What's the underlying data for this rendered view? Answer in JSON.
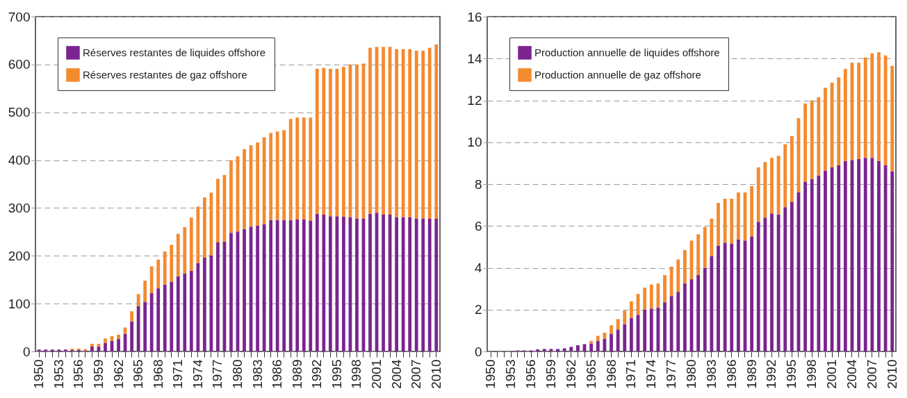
{
  "chart_data": [
    {
      "type": "bar",
      "stacked": true,
      "categories": [
        "1950",
        null,
        null,
        "1953",
        null,
        null,
        "1956",
        null,
        null,
        "1959",
        null,
        null,
        "1962",
        null,
        null,
        "1965",
        null,
        null,
        "1968",
        null,
        null,
        "1971",
        null,
        null,
        "1974",
        null,
        null,
        "1977",
        null,
        null,
        "1980",
        null,
        null,
        "1983",
        null,
        null,
        "1986",
        null,
        null,
        "1989",
        null,
        null,
        "1992",
        null,
        null,
        "1995",
        null,
        null,
        "1998",
        null,
        null,
        "2001",
        null,
        null,
        "2004",
        null,
        null,
        "2007",
        null,
        null,
        "2010"
      ],
      "series": [
        {
          "name": "Réserves restantes de liquides offshore",
          "color": "#7b2490",
          "values": [
            4,
            4,
            4,
            4,
            4,
            3,
            3,
            2,
            10,
            10,
            18,
            22,
            26,
            37,
            63,
            95,
            104,
            122,
            132,
            140,
            146,
            157,
            163,
            169,
            185,
            196,
            201,
            228,
            230,
            248,
            251,
            256,
            261,
            263,
            266,
            275,
            275,
            275,
            275,
            276,
            276,
            273,
            288,
            286,
            283,
            283,
            282,
            281,
            278,
            278,
            288,
            290,
            286,
            286,
            281,
            281,
            281,
            278,
            278,
            278,
            278
          ]
        },
        {
          "name": "Réserves restantes de gaz offshore",
          "color": "#f48a2e",
          "values": [
            0,
            0,
            0,
            0,
            0,
            3,
            3,
            3,
            6,
            6,
            9,
            10,
            9,
            13,
            21,
            25,
            44,
            56,
            60,
            69,
            77,
            89,
            97,
            111,
            118,
            126,
            131,
            133,
            139,
            152,
            157,
            167,
            170,
            174,
            182,
            182,
            185,
            188,
            211,
            213,
            213,
            216,
            303,
            307,
            308,
            308,
            313,
            319,
            322,
            324,
            347,
            347,
            351,
            351,
            351,
            351,
            351,
            351,
            351,
            357,
            364
          ]
        }
      ],
      "ylim": [
        0,
        700
      ],
      "yticks": [
        0,
        100,
        200,
        300,
        400,
        500,
        600,
        700
      ],
      "grid": "y",
      "legend": "top left"
    },
    {
      "type": "bar",
      "stacked": true,
      "categories": [
        "1950",
        null,
        null,
        "1953",
        null,
        null,
        "1956",
        null,
        null,
        "1959",
        null,
        null,
        "1962",
        null,
        null,
        "1965",
        null,
        null,
        "1968",
        null,
        null,
        "1971",
        null,
        null,
        "1974",
        null,
        null,
        "1977",
        null,
        null,
        "1980",
        null,
        null,
        "1983",
        null,
        null,
        "1986",
        null,
        null,
        "1989",
        null,
        null,
        "1992",
        null,
        null,
        "1995",
        null,
        null,
        "1998",
        null,
        null,
        "2001",
        null,
        null,
        "2004",
        null,
        null,
        "2007",
        null,
        null,
        "2010"
      ],
      "series": [
        {
          "name": "Production annuelle de liquides offshore",
          "color": "#7b2490",
          "values": [
            0,
            0,
            0,
            0,
            0.05,
            0.05,
            0.05,
            0.1,
            0.12,
            0.12,
            0.12,
            0.15,
            0.22,
            0.3,
            0.35,
            0.38,
            0.5,
            0.6,
            0.85,
            1.05,
            1.3,
            1.6,
            1.75,
            2.0,
            2.05,
            2.1,
            2.35,
            2.65,
            2.85,
            3.25,
            3.45,
            3.65,
            4.0,
            4.55,
            5.05,
            5.2,
            5.15,
            5.35,
            5.3,
            5.5,
            6.2,
            6.4,
            6.6,
            6.55,
            6.9,
            7.15,
            7.6,
            8.1,
            8.25,
            8.4,
            8.65,
            8.8,
            8.9,
            9.1,
            9.15,
            9.2,
            9.25,
            9.25,
            9.1,
            8.9,
            8.6
          ]
        },
        {
          "name": "Production annuelle de gaz offshore",
          "color": "#f48a2e",
          "values": [
            0,
            0,
            0,
            0,
            0,
            0,
            0,
            0,
            0,
            0,
            0,
            0,
            0,
            0,
            0,
            0.12,
            0.25,
            0.3,
            0.4,
            0.5,
            0.65,
            0.8,
            1.0,
            1.05,
            1.15,
            1.15,
            1.3,
            1.4,
            1.55,
            1.6,
            1.85,
            1.95,
            1.95,
            1.8,
            2.05,
            2.1,
            2.15,
            2.25,
            2.3,
            2.4,
            2.6,
            2.65,
            2.65,
            2.8,
            3.0,
            3.15,
            3.55,
            3.75,
            3.75,
            3.75,
            3.95,
            4.05,
            4.2,
            4.4,
            4.65,
            4.6,
            4.8,
            5.0,
            5.2,
            5.25,
            5.05
          ]
        }
      ],
      "ylim": [
        0,
        16
      ],
      "yticks": [
        0,
        2,
        4,
        6,
        8,
        10,
        12,
        14,
        16
      ],
      "grid": "y",
      "legend": "top left"
    }
  ]
}
